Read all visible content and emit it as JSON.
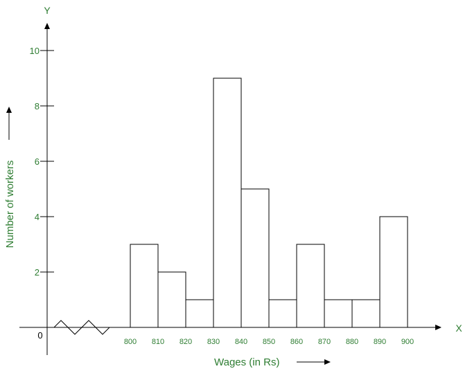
{
  "chart_data": {
    "type": "bar",
    "title": "",
    "xlabel": "Wages (in Rs)",
    "ylabel": "Number of workers",
    "x_axis_letter": "X",
    "y_axis_letter": "Y",
    "origin_label": "0",
    "x_ticks": [
      "800",
      "810",
      "820",
      "830",
      "840",
      "850",
      "860",
      "870",
      "880",
      "890",
      "900"
    ],
    "y_ticks": [
      "2",
      "4",
      "6",
      "8",
      "10"
    ],
    "ylim": [
      0,
      10
    ],
    "axis_break": true,
    "bins": [
      {
        "from": 800,
        "to": 810,
        "value": 3
      },
      {
        "from": 810,
        "to": 820,
        "value": 2
      },
      {
        "from": 820,
        "to": 830,
        "value": 1
      },
      {
        "from": 830,
        "to": 840,
        "value": 9
      },
      {
        "from": 840,
        "to": 850,
        "value": 5
      },
      {
        "from": 850,
        "to": 860,
        "value": 1
      },
      {
        "from": 860,
        "to": 870,
        "value": 3
      },
      {
        "from": 870,
        "to": 880,
        "value": 1
      },
      {
        "from": 880,
        "to": 890,
        "value": 1
      },
      {
        "from": 890,
        "to": 900,
        "value": 4
      }
    ],
    "colors": {
      "label_color": "#2e7d32",
      "axis_color": "#000000",
      "bar_fill": "#ffffff",
      "bar_stroke": "#000000"
    }
  }
}
